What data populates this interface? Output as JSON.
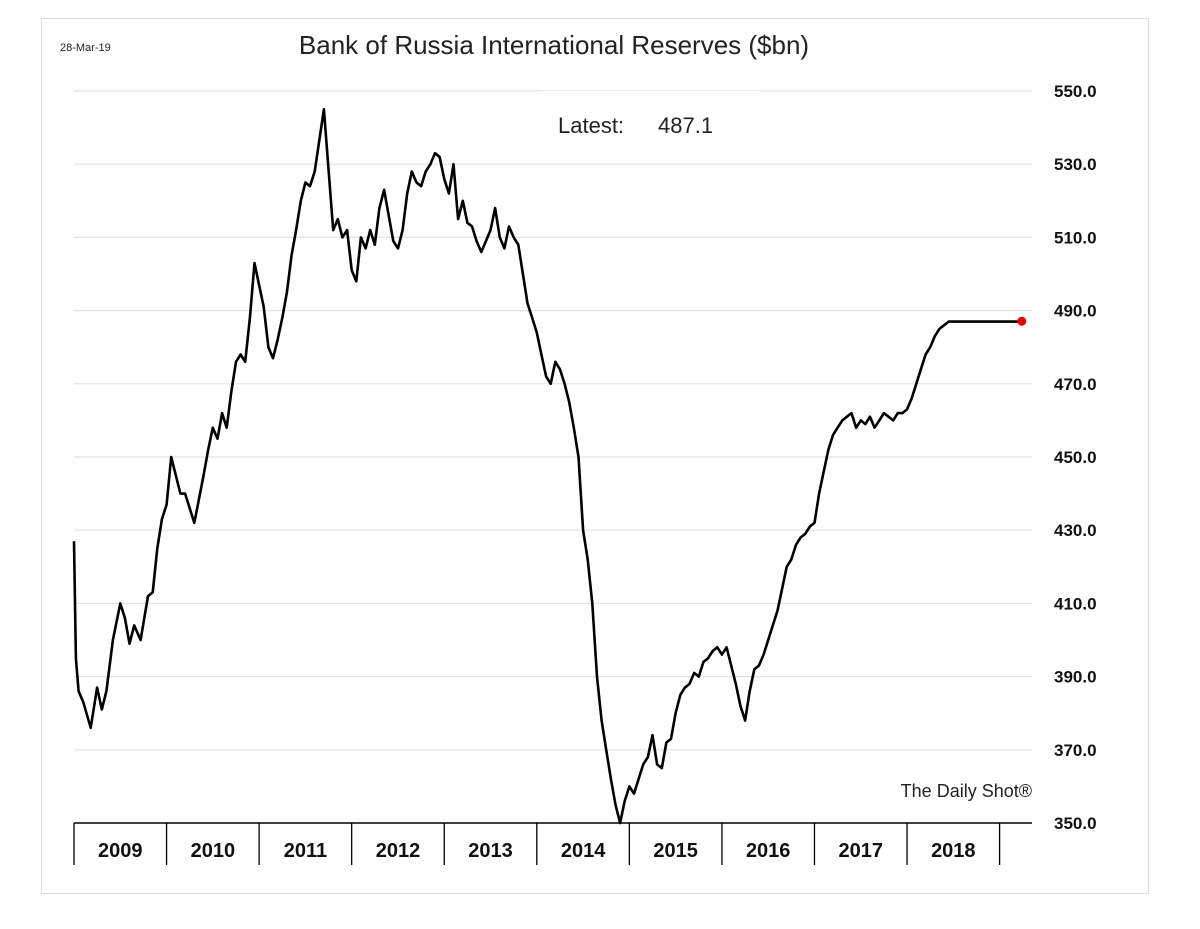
{
  "chart_data": {
    "type": "line",
    "date_label": "28-Mar-19",
    "title": "Bank of Russia International Reserves ($bn)",
    "annotation": {
      "label": "Latest:",
      "value": "487.1"
    },
    "source": "The Daily Shot®",
    "xlabel": "",
    "ylabel": "",
    "ylim": [
      350,
      550
    ],
    "y_ticks": [
      "550.0",
      "530.0",
      "510.0",
      "490.0",
      "470.0",
      "450.0",
      "430.0",
      "410.0",
      "390.0",
      "370.0",
      "350.0"
    ],
    "y_axis_side": "right",
    "grid": true,
    "legend": "none",
    "x_ticks": [
      "2009",
      "2010",
      "2011",
      "2012",
      "2013",
      "2014",
      "2015",
      "2016",
      "2017",
      "2018"
    ],
    "series": [
      {
        "line_color": "#000000",
        "x": [
          2009.0,
          2009.02,
          2009.05,
          2009.1,
          2009.18,
          2009.25,
          2009.3,
          2009.35,
          2009.42,
          2009.5,
          2009.55,
          2009.6,
          2009.65,
          2009.72,
          2009.8,
          2009.85,
          2009.9,
          2009.95,
          2010.0,
          2010.05,
          2010.1,
          2010.15,
          2010.2,
          2010.3,
          2010.4,
          2010.45,
          2010.5,
          2010.55,
          2010.6,
          2010.65,
          2010.7,
          2010.75,
          2010.8,
          2010.85,
          2010.9,
          2010.95,
          2011.0,
          2011.05,
          2011.1,
          2011.15,
          2011.2,
          2011.25,
          2011.3,
          2011.35,
          2011.4,
          2011.45,
          2011.5,
          2011.55,
          2011.6,
          2011.7,
          2011.8,
          2011.85,
          2011.9,
          2011.95,
          2012.0,
          2012.05,
          2012.1,
          2012.15,
          2012.2,
          2012.25,
          2012.3,
          2012.35,
          2012.4,
          2012.45,
          2012.5,
          2012.55,
          2012.6,
          2012.65,
          2012.7,
          2012.75,
          2012.8,
          2012.85,
          2012.9,
          2012.95,
          2013.0,
          2013.05,
          2013.1,
          2013.15,
          2013.2,
          2013.25,
          2013.3,
          2013.35,
          2013.4,
          2013.45,
          2013.5,
          2013.55,
          2013.6,
          2013.65,
          2013.7,
          2013.75,
          2013.8,
          2013.85,
          2013.9,
          2013.95,
          2014.0,
          2014.05,
          2014.1,
          2014.15,
          2014.2,
          2014.25,
          2014.3,
          2014.35,
          2014.4,
          2014.45,
          2014.5,
          2014.55,
          2014.6,
          2014.65,
          2014.7,
          2014.75,
          2014.8,
          2014.85,
          2014.9,
          2014.95,
          2015.0,
          2015.05,
          2015.1,
          2015.15,
          2015.2,
          2015.25,
          2015.3,
          2015.35,
          2015.4,
          2015.45,
          2015.5,
          2015.55,
          2015.6,
          2015.65,
          2015.7,
          2015.75,
          2015.8,
          2015.85,
          2015.9,
          2015.95,
          2016.0,
          2016.05,
          2016.1,
          2016.15,
          2016.2,
          2016.25,
          2016.3,
          2016.35,
          2016.4,
          2016.45,
          2016.5,
          2016.55,
          2016.6,
          2016.65,
          2016.7,
          2016.75,
          2016.8,
          2016.85,
          2016.9,
          2016.95,
          2017.0,
          2017.05,
          2017.1,
          2017.15,
          2017.2,
          2017.25,
          2017.3,
          2017.35,
          2017.4,
          2017.45,
          2017.5,
          2017.55,
          2017.6,
          2017.65,
          2017.7,
          2017.75,
          2017.8,
          2017.85,
          2017.9,
          2017.95,
          2018.0,
          2018.05,
          2018.1,
          2018.15,
          2018.2,
          2018.25,
          2018.3,
          2018.35,
          2018.4,
          2018.45,
          2018.5,
          2018.55,
          2018.6,
          2018.65,
          2018.7,
          2018.75,
          2018.8,
          2018.85,
          2018.9,
          2018.95,
          2019.0,
          2019.05,
          2019.1,
          2019.15,
          2019.2,
          2019.24
        ],
        "values": [
          427,
          395,
          386,
          383,
          376,
          387,
          381,
          386,
          400,
          410,
          406,
          399,
          404,
          400,
          412,
          413,
          425,
          433,
          437,
          450,
          445,
          440,
          440,
          432,
          445,
          452,
          458,
          455,
          462,
          458,
          468,
          476,
          478,
          476,
          488,
          503,
          497,
          491,
          480,
          477,
          482,
          488,
          495,
          505,
          512,
          520,
          525,
          524,
          528,
          545,
          512,
          515,
          510,
          512,
          501,
          498,
          510,
          507,
          512,
          508,
          518,
          523,
          516,
          509,
          507,
          512,
          522,
          528,
          525,
          524,
          528,
          530,
          533,
          532,
          526,
          522,
          530,
          515,
          520,
          514,
          513,
          509,
          506,
          509,
          512,
          518,
          510,
          507,
          513,
          510,
          508,
          500,
          492,
          488,
          484,
          478,
          472,
          470,
          476,
          474,
          470,
          465,
          458,
          450,
          430,
          422,
          410,
          390,
          378,
          370,
          362,
          355,
          350,
          356,
          360,
          358,
          362,
          366,
          368,
          374,
          366,
          365,
          372,
          373,
          380,
          385,
          387,
          388,
          391,
          390,
          394,
          395,
          397,
          398,
          396,
          398,
          393,
          388,
          382,
          378,
          386,
          392,
          393,
          396,
          400,
          404,
          408,
          414,
          420,
          422,
          426,
          428,
          429,
          431,
          432,
          440,
          446,
          452,
          456,
          458,
          460,
          461,
          462,
          458,
          460,
          459,
          461,
          458,
          460,
          462,
          461,
          460,
          462,
          462,
          463,
          466,
          470,
          474,
          478,
          480,
          483,
          485,
          486,
          487,
          487,
          487,
          487,
          487,
          487,
          487,
          487,
          487,
          487,
          487,
          487,
          487,
          487,
          487,
          487,
          487.1
        ],
        "latest_marker_color": "#e00000"
      }
    ]
  }
}
